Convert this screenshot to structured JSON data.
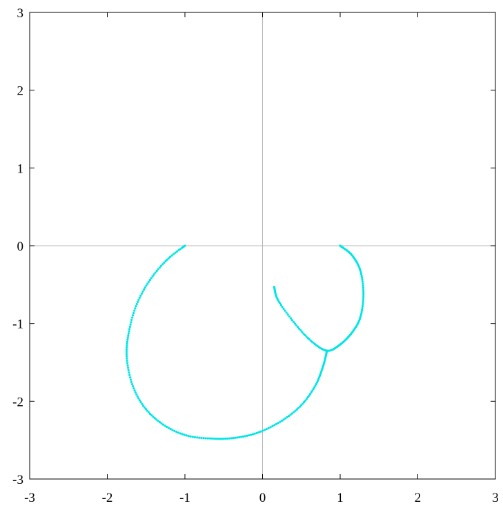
{
  "chart_data": {
    "type": "scatter",
    "title": "",
    "xlabel": "",
    "ylabel": "",
    "xlim": [
      -3,
      3
    ],
    "ylim": [
      -3,
      3
    ],
    "x_ticks": [
      "-3",
      "-2",
      "-1",
      "0",
      "1",
      "2",
      "3"
    ],
    "y_ticks": [
      "-3",
      "-2",
      "-1",
      "0",
      "1",
      "2",
      "3"
    ],
    "grid": "zero axis lines only",
    "legend": "none",
    "point_color": "#00e5e5",
    "series": [
      {
        "points": [
          [
            -1.0,
            0.0
          ],
          [
            -1.23,
            -0.18
          ],
          [
            -1.45,
            -0.44
          ],
          [
            -1.62,
            -0.75
          ],
          [
            -1.72,
            -1.1
          ],
          [
            -1.75,
            -1.42
          ],
          [
            -1.68,
            -1.78
          ],
          [
            -1.52,
            -2.08
          ],
          [
            -1.28,
            -2.3
          ],
          [
            -0.98,
            -2.44
          ],
          [
            -0.65,
            -2.48
          ],
          [
            -0.35,
            -2.47
          ],
          [
            -0.05,
            -2.4
          ],
          [
            0.25,
            -2.25
          ],
          [
            0.5,
            -2.05
          ],
          [
            0.68,
            -1.8
          ],
          [
            0.78,
            -1.55
          ],
          [
            0.83,
            -1.35
          ]
        ]
      },
      {
        "points": [
          [
            1.0,
            0.0
          ],
          [
            1.15,
            -0.12
          ],
          [
            1.26,
            -0.32
          ],
          [
            1.3,
            -0.62
          ],
          [
            1.26,
            -0.92
          ],
          [
            1.15,
            -1.12
          ],
          [
            1.0,
            -1.27
          ],
          [
            0.83,
            -1.35
          ],
          [
            0.62,
            -1.22
          ],
          [
            0.4,
            -0.98
          ],
          [
            0.2,
            -0.7
          ],
          [
            0.15,
            -0.53
          ]
        ]
      }
    ]
  }
}
